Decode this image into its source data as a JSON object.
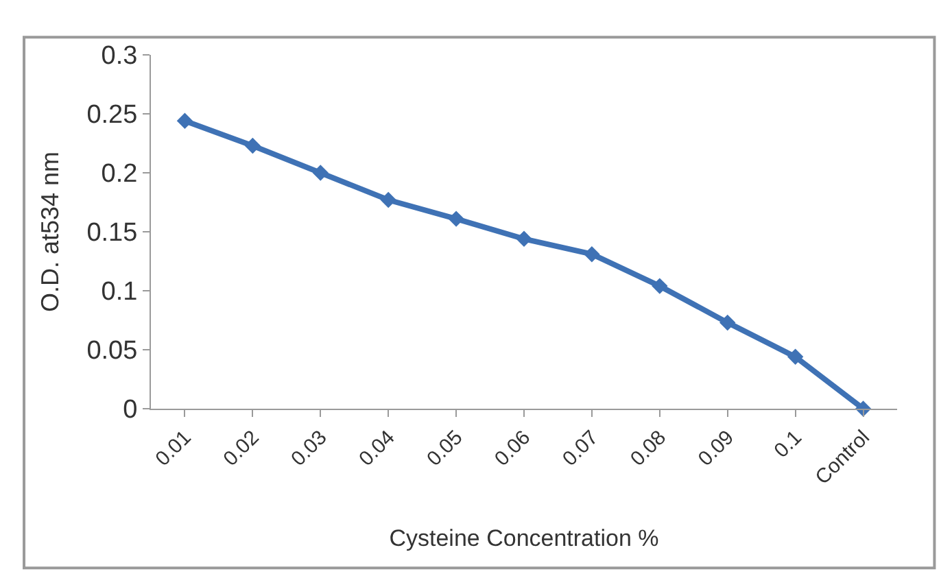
{
  "chart_data": {
    "type": "line",
    "xlabel": "Cysteine Concentration %",
    "ylabel": "O.D. at534 nm",
    "categories": [
      "0.01",
      "0.02",
      "0.03",
      "0.04",
      "0.05",
      "0.06",
      "0.07",
      "0.08",
      "0.09",
      "0.1",
      "Control"
    ],
    "series": [
      {
        "color": "#3f72b5",
        "values": [
          0.244,
          0.223,
          0.2,
          0.177,
          0.161,
          0.144,
          0.131,
          0.104,
          0.073,
          0.044,
          0.0
        ]
      }
    ],
    "ylim": [
      0,
      0.3
    ],
    "yticks": [
      0,
      0.05,
      0.1,
      0.15,
      0.2,
      0.25,
      0.3
    ],
    "legend": false,
    "marker": "diamond",
    "line_style": "solid"
  }
}
